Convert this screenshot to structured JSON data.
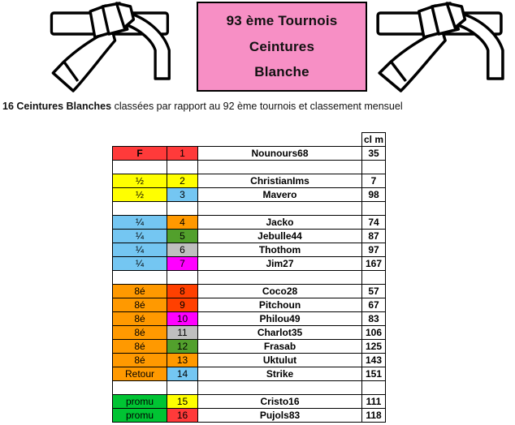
{
  "header": {
    "title_lines": [
      "93 ème Tournois",
      "Ceintures",
      "Blanche"
    ],
    "title_box_color": "#F78FC5",
    "belt_icon": "white-belt-knot-illustration"
  },
  "subtitle": {
    "bold_part": "16 Ceintures Blanches",
    "rest": " classées par rapport au 92 ème tournois et classement mensuel"
  },
  "colors": {
    "red": "#FF3A3A",
    "yellow": "#FFFF00",
    "skyblue": "#74C6F2",
    "orange": "#FF9900",
    "dark_green": "#52A02C",
    "gray": "#BFBFBF",
    "magenta": "#FF00FF",
    "orangered": "#FF4000",
    "bright_green": "#00C433",
    "white": "#FFFFFF"
  },
  "table": {
    "clm_header": "cl m",
    "rows": [
      {
        "stage": "F",
        "stage_color": "#FF3A3A",
        "rank": "1",
        "rank_color": "#FF3A3A",
        "player": "Nounours68",
        "clm": "35"
      },
      {
        "stage": "",
        "stage_color": "#FFFFFF",
        "rank": "",
        "rank_color": "#FFFFFF",
        "player": "",
        "clm": ""
      },
      {
        "stage": "½",
        "stage_color": "#FFFF00",
        "rank": "2",
        "rank_color": "#FFFF00",
        "player": "ChristianIms",
        "clm": "7"
      },
      {
        "stage": "½",
        "stage_color": "#FFFF00",
        "rank": "3",
        "rank_color": "#74C6F2",
        "player": "Mavero",
        "clm": "98"
      },
      {
        "stage": "",
        "stage_color": "#FFFFFF",
        "rank": "",
        "rank_color": "#FFFFFF",
        "player": "",
        "clm": ""
      },
      {
        "stage": "¼",
        "stage_color": "#74C6F2",
        "rank": "4",
        "rank_color": "#FF9900",
        "player": "Jacko",
        "clm": "74"
      },
      {
        "stage": "¼",
        "stage_color": "#74C6F2",
        "rank": "5",
        "rank_color": "#52A02C",
        "player": "Jebulle44",
        "clm": "87"
      },
      {
        "stage": "¼",
        "stage_color": "#74C6F2",
        "rank": "6",
        "rank_color": "#BFBFBF",
        "player": "Thothom",
        "clm": "97"
      },
      {
        "stage": "¼",
        "stage_color": "#74C6F2",
        "rank": "7",
        "rank_color": "#FF00FF",
        "player": "Jim27",
        "clm": "167"
      },
      {
        "stage": "",
        "stage_color": "#FFFFFF",
        "rank": "",
        "rank_color": "#FFFFFF",
        "player": "",
        "clm": ""
      },
      {
        "stage": "8é",
        "stage_color": "#FF9900",
        "rank": "8",
        "rank_color": "#FF4000",
        "player": "Coco28",
        "clm": "57"
      },
      {
        "stage": "8é",
        "stage_color": "#FF9900",
        "rank": "9",
        "rank_color": "#FF4000",
        "player": "Pitchoun",
        "clm": "67"
      },
      {
        "stage": "8é",
        "stage_color": "#FF9900",
        "rank": "10",
        "rank_color": "#FF00FF",
        "player": "Philou49",
        "clm": "83"
      },
      {
        "stage": "8é",
        "stage_color": "#FF9900",
        "rank": "11",
        "rank_color": "#BFBFBF",
        "player": "Charlot35",
        "clm": "106"
      },
      {
        "stage": "8é",
        "stage_color": "#FF9900",
        "rank": "12",
        "rank_color": "#52A02C",
        "player": "Frasab",
        "clm": "125"
      },
      {
        "stage": "8é",
        "stage_color": "#FF9900",
        "rank": "13",
        "rank_color": "#FF9900",
        "player": "Uktulut",
        "clm": "143"
      },
      {
        "stage": "Retour",
        "stage_color": "#FF9900",
        "rank": "14",
        "rank_color": "#74C6F2",
        "player": "Strike",
        "clm": "151"
      },
      {
        "stage": "",
        "stage_color": "#FFFFFF",
        "rank": "",
        "rank_color": "#FFFFFF",
        "player": "",
        "clm": ""
      },
      {
        "stage": "promu",
        "stage_color": "#00C433",
        "rank": "15",
        "rank_color": "#FFFF00",
        "player": "Cristo16",
        "clm": "111"
      },
      {
        "stage": "promu",
        "stage_color": "#00C433",
        "rank": "16",
        "rank_color": "#FF3A3A",
        "player": "Pujols83",
        "clm": "118"
      }
    ]
  }
}
